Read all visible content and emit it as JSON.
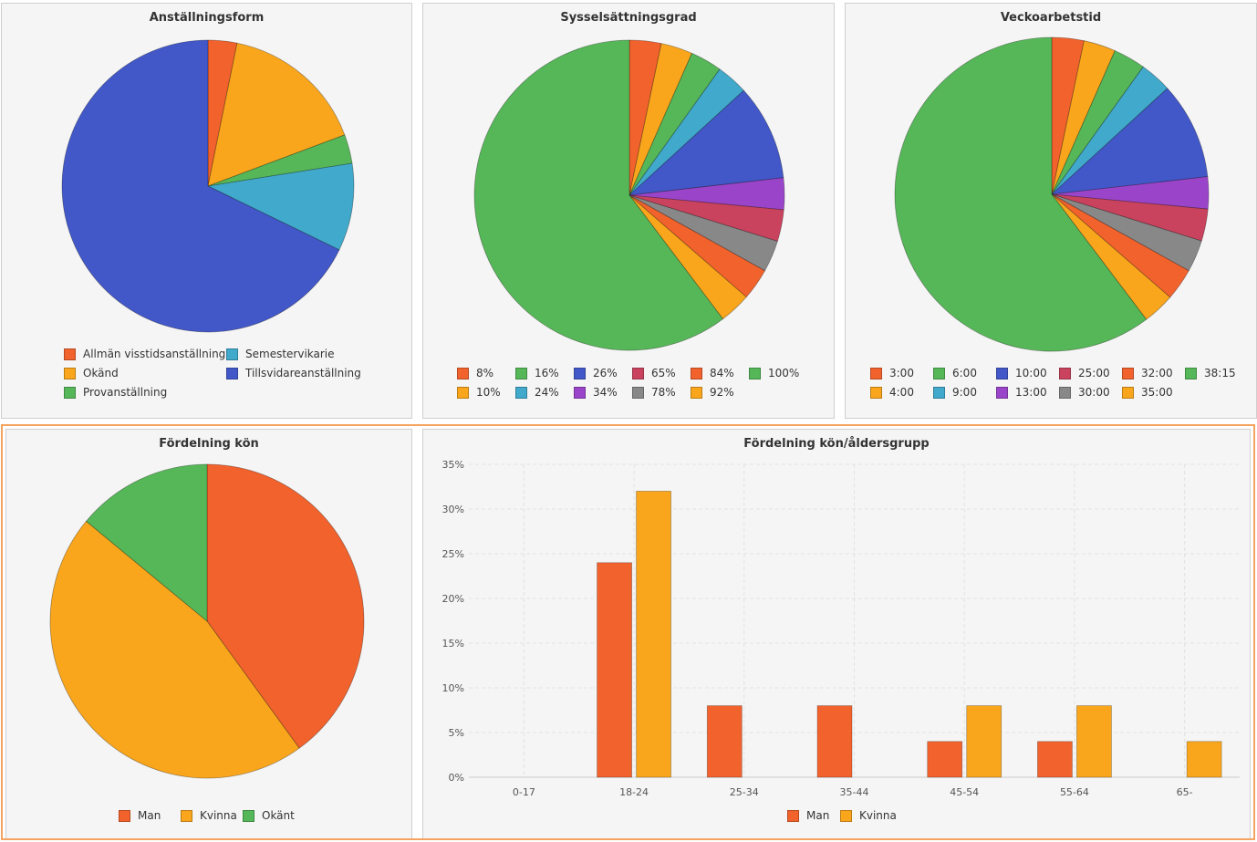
{
  "colors": {
    "orange_red": "#f2622d",
    "amber": "#f9a61c",
    "green": "#56b758",
    "cyan": "#41a9cb",
    "blue": "#4258c9",
    "purple": "#9a45c9",
    "crimson": "#c9435e",
    "gray": "#888888"
  },
  "chart_data": [
    {
      "id": "anstallningsform",
      "type": "pie",
      "title": "Anställningsform",
      "slices": [
        {
          "label": "Allmän visstidsanställning",
          "value": 3.2,
          "color": "#f2622d"
        },
        {
          "label": "Okänd",
          "value": 16.1,
          "color": "#f9a61c"
        },
        {
          "label": "Provanställning",
          "value": 3.2,
          "color": "#56b758"
        },
        {
          "label": "Semestervikarie",
          "value": 9.7,
          "color": "#41a9cb"
        },
        {
          "label": "Tillsvidareanställning",
          "value": 67.8,
          "color": "#4258c9"
        }
      ],
      "legend": [
        {
          "label": "Allmän visstidsanställning",
          "color": "#f2622d"
        },
        {
          "label": "Semestervikarie",
          "color": "#41a9cb"
        },
        {
          "label": "Okänd",
          "color": "#f9a61c"
        },
        {
          "label": "Tillsvidareanställning",
          "color": "#4258c9"
        },
        {
          "label": "Provanställning",
          "color": "#56b758"
        }
      ]
    },
    {
      "id": "sysselsattningsgrad",
      "type": "pie",
      "title": "Sysselsättningsgrad",
      "slices": [
        {
          "label": "8%",
          "value": 3.3,
          "color": "#f2622d"
        },
        {
          "label": "10%",
          "value": 3.3,
          "color": "#f9a61c"
        },
        {
          "label": "16%",
          "value": 3.3,
          "color": "#56b758"
        },
        {
          "label": "24%",
          "value": 3.3,
          "color": "#41a9cb"
        },
        {
          "label": "26%",
          "value": 10.0,
          "color": "#4258c9"
        },
        {
          "label": "34%",
          "value": 3.3,
          "color": "#9a45c9"
        },
        {
          "label": "65%",
          "value": 3.3,
          "color": "#c9435e"
        },
        {
          "label": "78%",
          "value": 3.3,
          "color": "#888888"
        },
        {
          "label": "84%",
          "value": 3.3,
          "color": "#f2622d"
        },
        {
          "label": "92%",
          "value": 3.3,
          "color": "#f9a61c"
        },
        {
          "label": "100%",
          "value": 60.3,
          "color": "#56b758"
        }
      ],
      "legend": [
        {
          "label": "8%",
          "color": "#f2622d"
        },
        {
          "label": "16%",
          "color": "#56b758"
        },
        {
          "label": "26%",
          "color": "#4258c9"
        },
        {
          "label": "65%",
          "color": "#c9435e"
        },
        {
          "label": "84%",
          "color": "#f2622d"
        },
        {
          "label": "100%",
          "color": "#56b758"
        },
        {
          "label": "10%",
          "color": "#f9a61c"
        },
        {
          "label": "24%",
          "color": "#41a9cb"
        },
        {
          "label": "34%",
          "color": "#9a45c9"
        },
        {
          "label": "78%",
          "color": "#888888"
        },
        {
          "label": "92%",
          "color": "#f9a61c"
        }
      ]
    },
    {
      "id": "veckoarbetstid",
      "type": "pie",
      "title": "Veckoarbetstid",
      "slices": [
        {
          "label": "3:00",
          "value": 3.3,
          "color": "#f2622d"
        },
        {
          "label": "4:00",
          "value": 3.3,
          "color": "#f9a61c"
        },
        {
          "label": "6:00",
          "value": 3.3,
          "color": "#56b758"
        },
        {
          "label": "9:00",
          "value": 3.3,
          "color": "#41a9cb"
        },
        {
          "label": "10:00",
          "value": 10.0,
          "color": "#4258c9"
        },
        {
          "label": "13:00",
          "value": 3.3,
          "color": "#9a45c9"
        },
        {
          "label": "25:00",
          "value": 3.3,
          "color": "#c9435e"
        },
        {
          "label": "30:00",
          "value": 3.3,
          "color": "#888888"
        },
        {
          "label": "32:00",
          "value": 3.3,
          "color": "#f2622d"
        },
        {
          "label": "35:00",
          "value": 3.3,
          "color": "#f9a61c"
        },
        {
          "label": "38:15",
          "value": 60.3,
          "color": "#56b758"
        }
      ],
      "legend": [
        {
          "label": "3:00",
          "color": "#f2622d"
        },
        {
          "label": "6:00",
          "color": "#56b758"
        },
        {
          "label": "10:00",
          "color": "#4258c9"
        },
        {
          "label": "25:00",
          "color": "#c9435e"
        },
        {
          "label": "32:00",
          "color": "#f2622d"
        },
        {
          "label": "38:15",
          "color": "#56b758"
        },
        {
          "label": "4:00",
          "color": "#f9a61c"
        },
        {
          "label": "9:00",
          "color": "#41a9cb"
        },
        {
          "label": "13:00",
          "color": "#9a45c9"
        },
        {
          "label": "30:00",
          "color": "#888888"
        },
        {
          "label": "35:00",
          "color": "#f9a61c"
        }
      ]
    },
    {
      "id": "fordelning-kon",
      "type": "pie",
      "title": "Fördelning kön",
      "slices": [
        {
          "label": "Man",
          "value": 40,
          "color": "#f2622d"
        },
        {
          "label": "Kvinna",
          "value": 46,
          "color": "#f9a61c"
        },
        {
          "label": "Okänt",
          "value": 14,
          "color": "#56b758"
        }
      ],
      "legend": [
        {
          "label": "Man",
          "color": "#f2622d"
        },
        {
          "label": "Kvinna",
          "color": "#f9a61c"
        },
        {
          "label": "Okänt",
          "color": "#56b758"
        }
      ]
    },
    {
      "id": "fordelning-kon-aldersgrupp",
      "type": "bar",
      "title": "Fördelning kön/åldersgrupp",
      "categories": [
        "0-17",
        "18-24",
        "25-34",
        "35-44",
        "45-54",
        "55-64",
        "65-"
      ],
      "series": [
        {
          "name": "Man",
          "color": "#f2622d",
          "values": [
            0,
            24,
            8,
            8,
            4,
            4,
            0
          ]
        },
        {
          "name": "Kvinna",
          "color": "#f9a61c",
          "values": [
            0,
            32,
            0,
            0,
            8,
            8,
            4
          ]
        }
      ],
      "ylim": [
        0,
        35
      ],
      "yticks": [
        "0%",
        "5%",
        "10%",
        "15%",
        "20%",
        "25%",
        "30%",
        "35%"
      ],
      "grid": true,
      "legend_position": "bottom"
    }
  ]
}
